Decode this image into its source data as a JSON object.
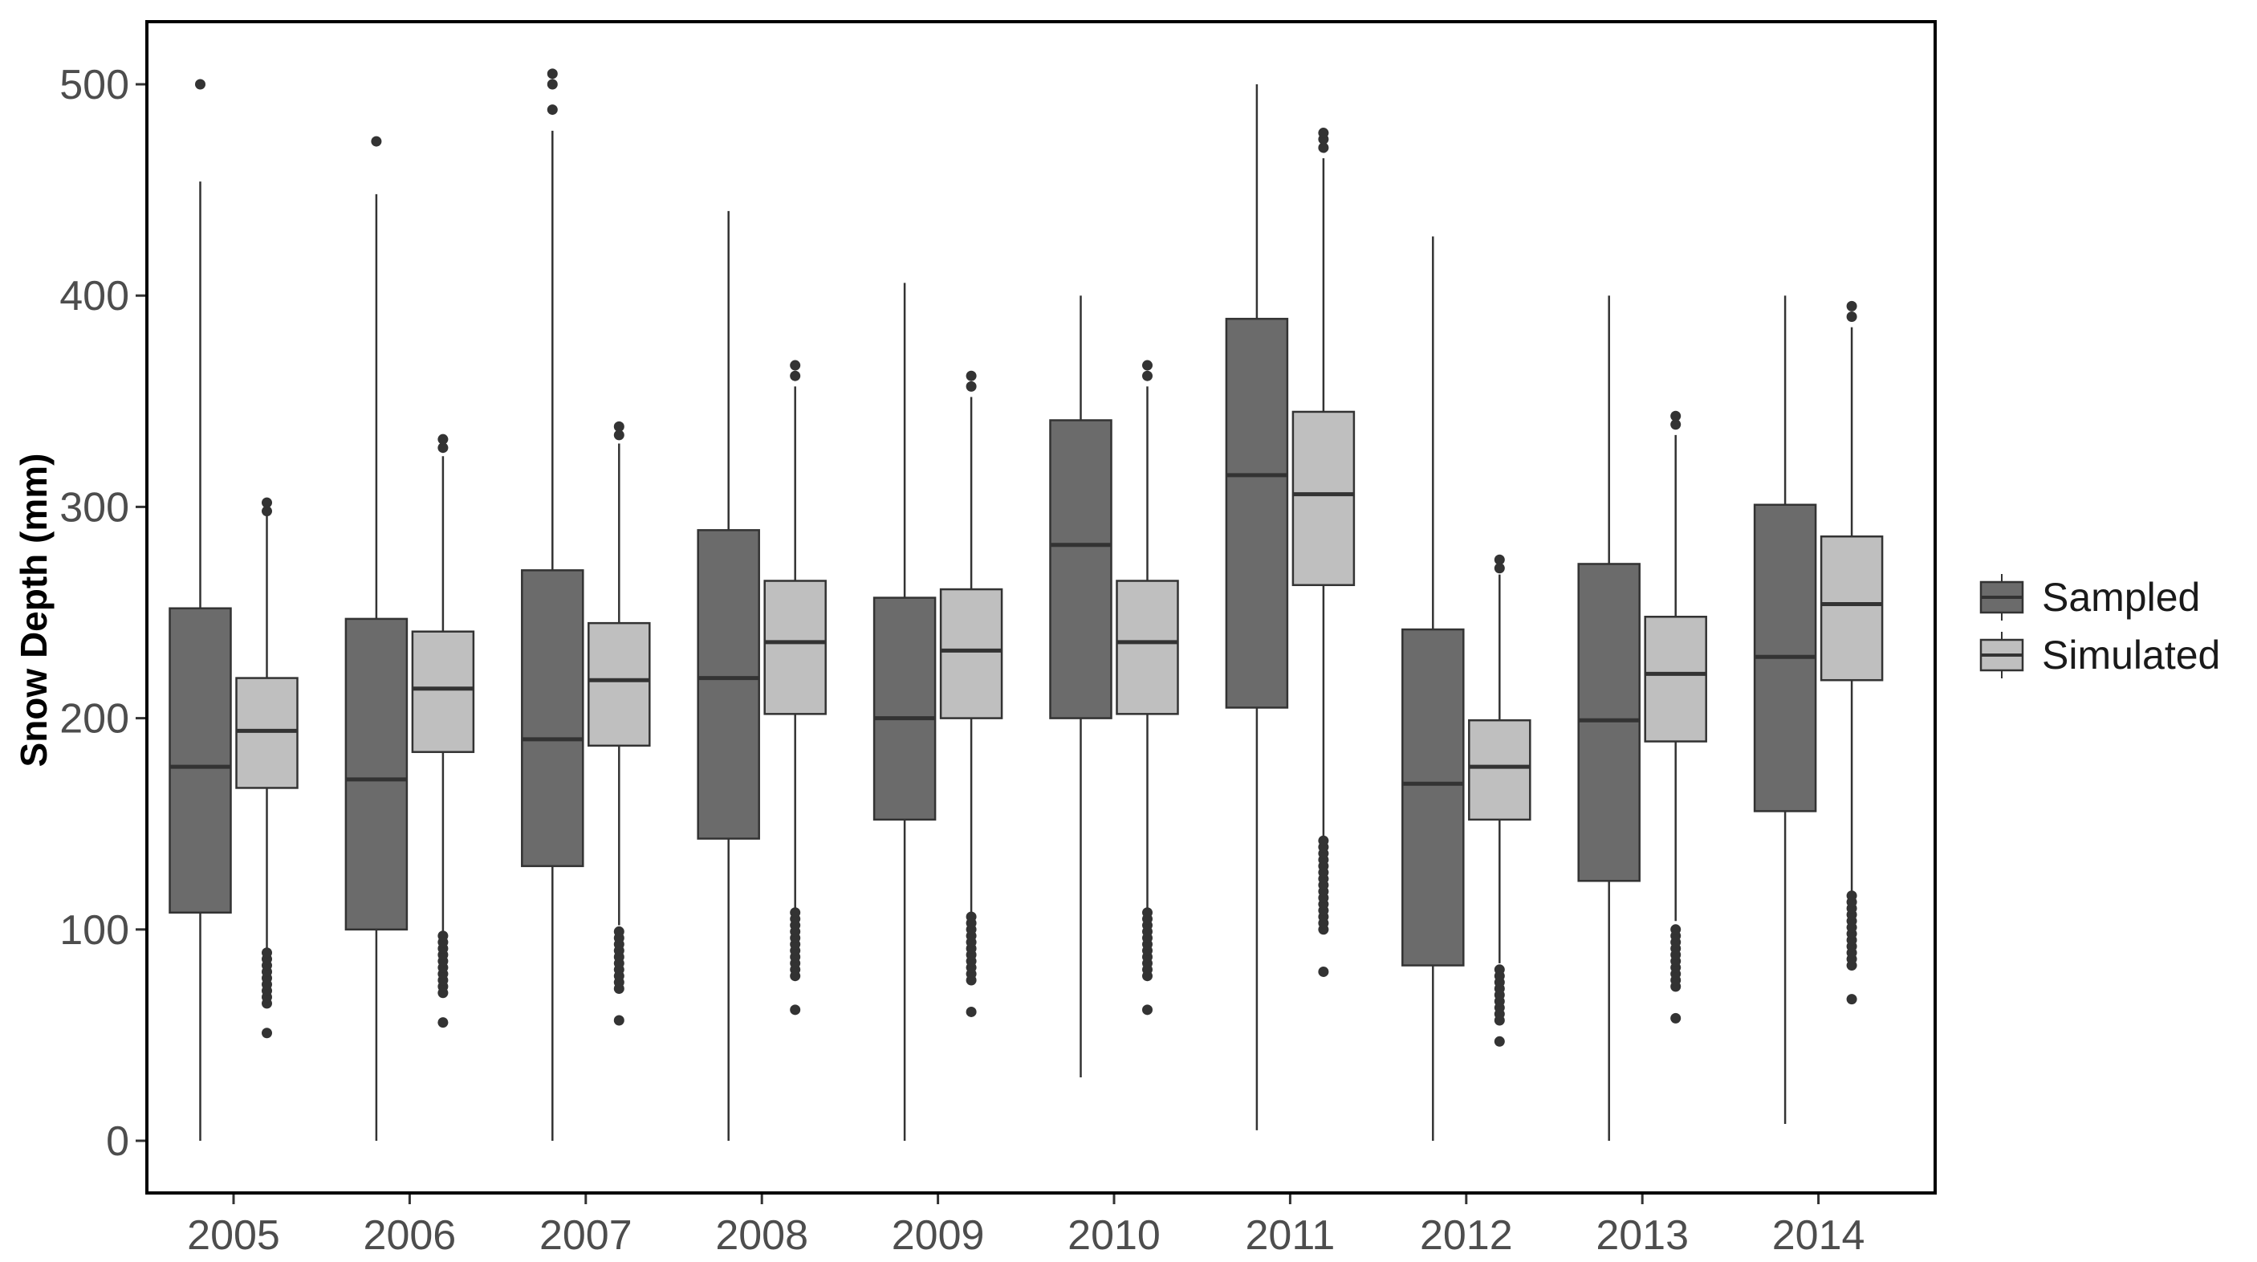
{
  "chart_data": {
    "type": "boxplot",
    "title": "",
    "xlabel": "",
    "ylabel": "Snow Depth (mm)",
    "ylim": [
      -25,
      530
    ],
    "yticks": [
      0,
      100,
      200,
      300,
      400,
      500
    ],
    "grid": false,
    "legend_position": "right",
    "categories": [
      "2005",
      "2006",
      "2007",
      "2008",
      "2009",
      "2010",
      "2011",
      "2012",
      "2013",
      "2014"
    ],
    "series": [
      {
        "name": "Sampled",
        "color": "#6b6b6b",
        "boxes": [
          {
            "min": 0,
            "q1": 108,
            "median": 177,
            "q3": 252,
            "max": 454,
            "outliers": [
              500
            ]
          },
          {
            "min": 0,
            "q1": 100,
            "median": 171,
            "q3": 247,
            "max": 448,
            "outliers": [
              473
            ]
          },
          {
            "min": 0,
            "q1": 130,
            "median": 190,
            "q3": 270,
            "max": 478,
            "outliers": [
              488,
              500,
              505
            ]
          },
          {
            "min": 0,
            "q1": 143,
            "median": 219,
            "q3": 289,
            "max": 440,
            "outliers": []
          },
          {
            "min": 0,
            "q1": 152,
            "median": 200,
            "q3": 257,
            "max": 406,
            "outliers": []
          },
          {
            "min": 30,
            "q1": 200,
            "median": 282,
            "q3": 341,
            "max": 400,
            "outliers": []
          },
          {
            "min": 5,
            "q1": 205,
            "median": 315,
            "q3": 389,
            "max": 500,
            "outliers": []
          },
          {
            "min": 0,
            "q1": 83,
            "median": 169,
            "q3": 242,
            "max": 428,
            "outliers": []
          },
          {
            "min": 0,
            "q1": 123,
            "median": 199,
            "q3": 273,
            "max": 400,
            "outliers": []
          },
          {
            "min": 8,
            "q1": 156,
            "median": 229,
            "q3": 301,
            "max": 400,
            "outliers": []
          }
        ]
      },
      {
        "name": "Simulated",
        "color": "#bfbfbf",
        "boxes": [
          {
            "min": 90,
            "q1": 167,
            "median": 194,
            "q3": 219,
            "max": 296,
            "outliers": [
              51,
              65,
              68,
              71,
              74,
              77,
              80,
              83,
              86,
              89,
              298,
              302
            ]
          },
          {
            "min": 99,
            "q1": 184,
            "median": 214,
            "q3": 241,
            "max": 324,
            "outliers": [
              56,
              70,
              73,
              76,
              79,
              82,
              85,
              88,
              91,
              94,
              97,
              328,
              332
            ]
          },
          {
            "min": 102,
            "q1": 187,
            "median": 218,
            "q3": 245,
            "max": 330,
            "outliers": [
              57,
              72,
              75,
              78,
              81,
              84,
              87,
              90,
              93,
              96,
              99,
              334,
              338
            ]
          },
          {
            "min": 110,
            "q1": 202,
            "median": 236,
            "q3": 265,
            "max": 357,
            "outliers": [
              62,
              78,
              81,
              84,
              87,
              90,
              93,
              96,
              99,
              102,
              105,
              108,
              362,
              367
            ]
          },
          {
            "min": 108,
            "q1": 200,
            "median": 232,
            "q3": 261,
            "max": 352,
            "outliers": [
              61,
              76,
              79,
              82,
              85,
              88,
              91,
              94,
              97,
              100,
              103,
              106,
              357,
              362
            ]
          },
          {
            "min": 110,
            "q1": 202,
            "median": 236,
            "q3": 265,
            "max": 357,
            "outliers": [
              62,
              78,
              81,
              84,
              87,
              90,
              93,
              96,
              99,
              102,
              105,
              108,
              362,
              367
            ]
          },
          {
            "min": 143,
            "q1": 263,
            "median": 306,
            "q3": 345,
            "max": 465,
            "outliers": [
              80,
              100,
              103,
              106,
              109,
              112,
              115,
              118,
              121,
              124,
              127,
              130,
              133,
              136,
              139,
              142,
              470,
              474,
              477
            ]
          },
          {
            "min": 84,
            "q1": 152,
            "median": 177,
            "q3": 199,
            "max": 268,
            "outliers": [
              47,
              57,
              60,
              63,
              66,
              69,
              72,
              75,
              78,
              81,
              271,
              275
            ]
          },
          {
            "min": 104,
            "q1": 189,
            "median": 221,
            "q3": 248,
            "max": 334,
            "outliers": [
              58,
              73,
              76,
              79,
              82,
              85,
              88,
              91,
              94,
              97,
              100,
              339,
              343
            ]
          },
          {
            "min": 118,
            "q1": 218,
            "median": 254,
            "q3": 286,
            "max": 385,
            "outliers": [
              67,
              83,
              86,
              89,
              92,
              95,
              98,
              101,
              104,
              107,
              110,
              113,
              116,
              390,
              395
            ]
          }
        ]
      }
    ]
  }
}
